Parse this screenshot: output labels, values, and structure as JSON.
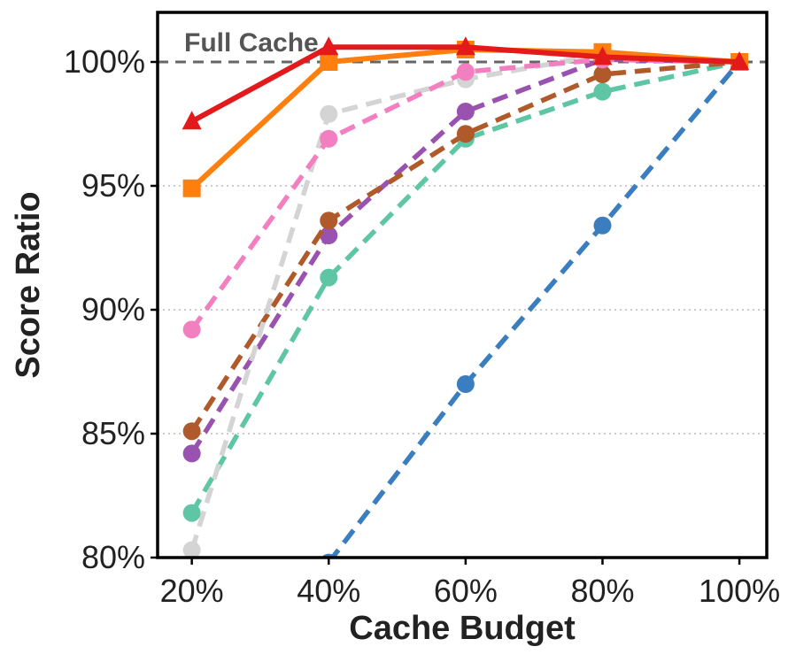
{
  "chart_data": {
    "type": "line",
    "xlabel": "Cache Budget",
    "ylabel": "Score Ratio",
    "x": [
      20,
      40,
      60,
      80,
      100
    ],
    "x_tick_labels": [
      "20%",
      "40%",
      "60%",
      "80%",
      "100%"
    ],
    "y_ticks": [
      80,
      85,
      90,
      95,
      100
    ],
    "y_tick_labels": [
      "80%",
      "85%",
      "90%",
      "95%",
      "100%"
    ],
    "xlim": [
      15,
      104
    ],
    "ylim": [
      80,
      102
    ],
    "reference_line": {
      "y": 100,
      "label": "Full Cache",
      "color": "#666666"
    },
    "grid": "horizontal dotted",
    "series": [
      {
        "name": "series-blue",
        "color": "#3a7ebf",
        "style": "dashed",
        "marker": "circle",
        "values": [
          null,
          79.8,
          87.0,
          93.4,
          100.0
        ]
      },
      {
        "name": "series-teal",
        "color": "#5fc6a5",
        "style": "dashed",
        "marker": "circle",
        "values": [
          81.8,
          91.3,
          96.9,
          98.8,
          100.0
        ]
      },
      {
        "name": "series-purple",
        "color": "#9a52b0",
        "style": "dashed",
        "marker": "circle",
        "values": [
          84.2,
          93.0,
          98.0,
          100.1,
          100.0
        ]
      },
      {
        "name": "series-brown",
        "color": "#b0592a",
        "style": "dashed",
        "marker": "circle",
        "values": [
          85.1,
          93.6,
          97.1,
          99.5,
          100.0
        ]
      },
      {
        "name": "series-gray",
        "color": "#d4d4d4",
        "style": "dashed",
        "marker": "circle",
        "values": [
          80.3,
          97.9,
          99.3,
          100.3,
          100.0
        ]
      },
      {
        "name": "series-pink",
        "color": "#f27fc0",
        "style": "dashed",
        "marker": "circle",
        "values": [
          89.2,
          96.9,
          99.6,
          100.1,
          100.0
        ]
      },
      {
        "name": "series-orange",
        "color": "#ff7f0e",
        "style": "solid",
        "marker": "square",
        "values": [
          94.9,
          100.0,
          100.5,
          100.4,
          100.0
        ]
      },
      {
        "name": "series-red",
        "color": "#e31a1c",
        "style": "solid",
        "marker": "triangle",
        "values": [
          97.6,
          100.6,
          100.6,
          100.2,
          100.0
        ]
      }
    ]
  }
}
